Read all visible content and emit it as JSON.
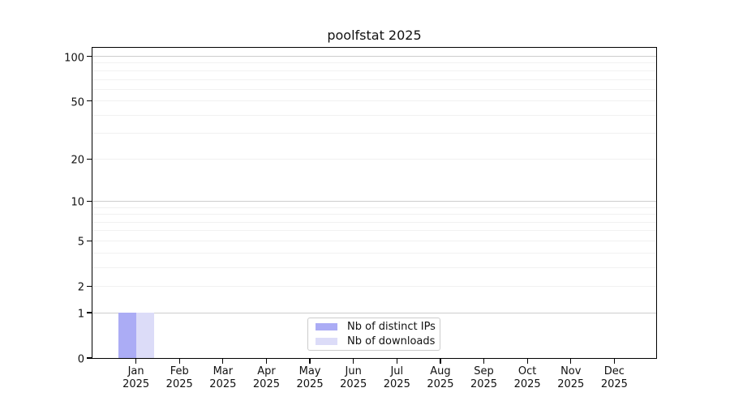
{
  "chart_data": {
    "type": "bar",
    "title": "poolfstat 2025",
    "categories": [
      "Jan 2025",
      "Feb 2025",
      "Mar 2025",
      "Apr 2025",
      "May 2025",
      "Jun 2025",
      "Jul 2025",
      "Aug 2025",
      "Sep 2025",
      "Oct 2025",
      "Nov 2025",
      "Dec 2025"
    ],
    "series": [
      {
        "name": "Nb of distinct IPs",
        "color": "#abacf5",
        "values": [
          1,
          0,
          0,
          0,
          0,
          0,
          0,
          0,
          0,
          0,
          0,
          0
        ]
      },
      {
        "name": "Nb of downloads",
        "color": "#dcdcf8",
        "values": [
          1,
          0,
          0,
          0,
          0,
          0,
          0,
          0,
          0,
          0,
          0,
          0
        ]
      }
    ],
    "y_axis": {
      "scale": "log10(1+y)",
      "tick_values": [
        0,
        1,
        2,
        5,
        10,
        20,
        50,
        100
      ],
      "major_gridlines": [
        1,
        10,
        100
      ],
      "minor_gridlines": [
        2,
        3,
        4,
        5,
        6,
        7,
        8,
        9,
        20,
        30,
        40,
        50,
        60,
        70,
        80,
        90
      ],
      "max": 117
    },
    "xlabel": "",
    "ylabel": "",
    "grid": true,
    "legend_position": "lower center"
  },
  "colors": {
    "axis": "#000000",
    "major_grid": "#cdcdcd",
    "minor_grid": "#f1f1f1",
    "legend_border": "#cccccc",
    "background": "#ffffff"
  }
}
